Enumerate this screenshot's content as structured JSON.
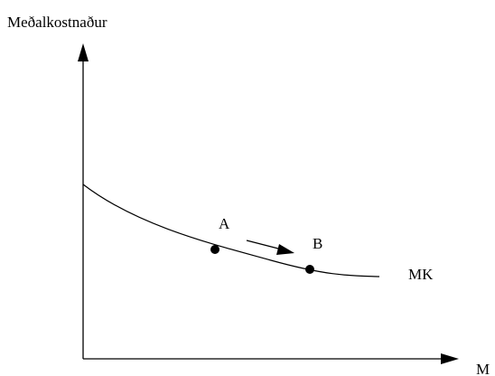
{
  "diagram": {
    "y_axis_label": "Meðalkostnaður",
    "x_axis_label": "M",
    "curve_label": "MK",
    "point_a_label": "A",
    "point_b_label": "B",
    "colors": {
      "ink": "#000000",
      "background": "#ffffff"
    }
  }
}
